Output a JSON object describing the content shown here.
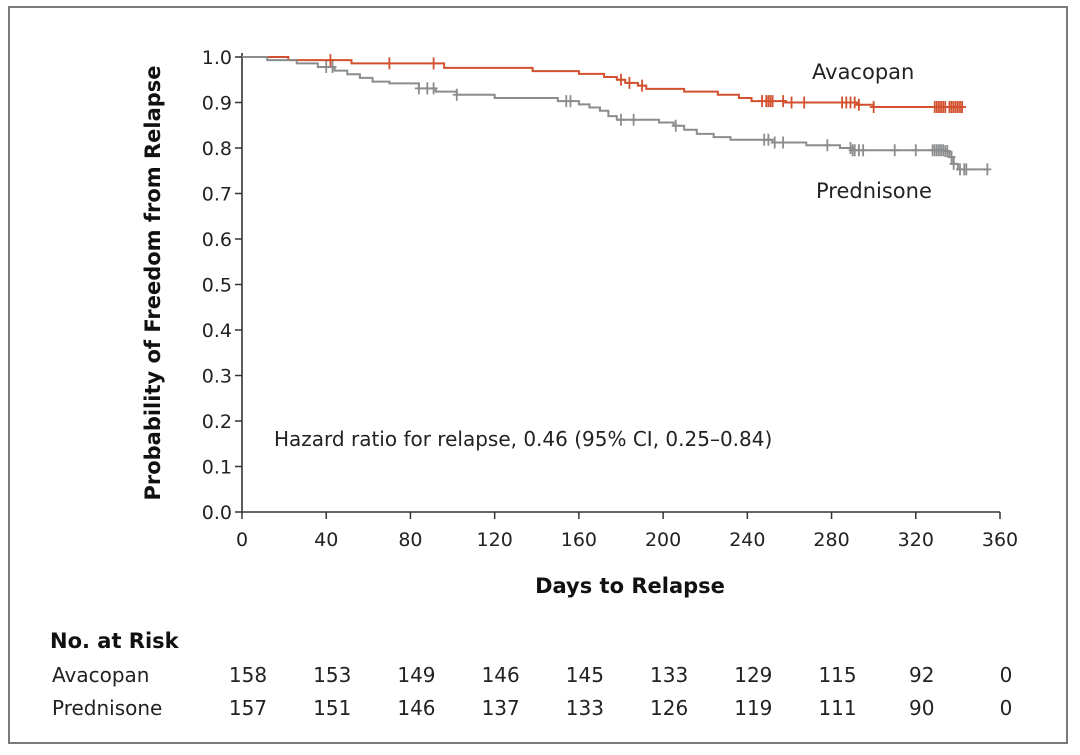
{
  "chart_data": {
    "type": "line",
    "title": "",
    "xlabel": "Days to Relapse",
    "ylabel": "Probability of Freedom from Relapse",
    "xlim": [
      0,
      360
    ],
    "ylim": [
      0,
      1
    ],
    "x_ticks": [
      0,
      40,
      80,
      120,
      160,
      200,
      240,
      280,
      320,
      360
    ],
    "y_ticks": [
      "0.0",
      "0.1",
      "0.2",
      "0.3",
      "0.4",
      "0.5",
      "0.6",
      "0.7",
      "0.8",
      "0.9",
      "1.0"
    ],
    "grid": false,
    "annotation": "Hazard ratio for relapse, 0.46 (95% CI, 0.25–0.84)",
    "series": [
      {
        "name": "Avacopan",
        "color": "#d2502e",
        "steps": [
          [
            0,
            1.0
          ],
          [
            22,
            0.993
          ],
          [
            52,
            0.986
          ],
          [
            96,
            0.976
          ],
          [
            138,
            0.969
          ],
          [
            160,
            0.963
          ],
          [
            172,
            0.956
          ],
          [
            178,
            0.95
          ],
          [
            182,
            0.943
          ],
          [
            188,
            0.937
          ],
          [
            192,
            0.93
          ],
          [
            210,
            0.924
          ],
          [
            226,
            0.917
          ],
          [
            236,
            0.91
          ],
          [
            242,
            0.903
          ],
          [
            258,
            0.9
          ],
          [
            292,
            0.895
          ],
          [
            300,
            0.89
          ],
          [
            342,
            0.89
          ]
        ],
        "censored": [
          42,
          70,
          91,
          180,
          184,
          190,
          247,
          249,
          250,
          251,
          252,
          257,
          261,
          267,
          285,
          287,
          289,
          291,
          293,
          300,
          329,
          330,
          331,
          332,
          333,
          334,
          336,
          337,
          338,
          339,
          340,
          341,
          342
        ]
      },
      {
        "name": "Prednisone",
        "color": "#8a8c8e",
        "steps": [
          [
            0,
            1.0
          ],
          [
            12,
            0.993
          ],
          [
            26,
            0.986
          ],
          [
            36,
            0.978
          ],
          [
            44,
            0.97
          ],
          [
            50,
            0.962
          ],
          [
            56,
            0.954
          ],
          [
            62,
            0.946
          ],
          [
            70,
            0.942
          ],
          [
            84,
            0.931
          ],
          [
            92,
            0.924
          ],
          [
            102,
            0.917
          ],
          [
            120,
            0.91
          ],
          [
            150,
            0.903
          ],
          [
            160,
            0.896
          ],
          [
            165,
            0.889
          ],
          [
            170,
            0.882
          ],
          [
            174,
            0.87
          ],
          [
            178,
            0.862
          ],
          [
            198,
            0.856
          ],
          [
            205,
            0.849
          ],
          [
            210,
            0.84
          ],
          [
            216,
            0.831
          ],
          [
            224,
            0.824
          ],
          [
            232,
            0.818
          ],
          [
            252,
            0.812
          ],
          [
            268,
            0.806
          ],
          [
            284,
            0.8
          ],
          [
            290,
            0.795
          ],
          [
            334,
            0.793
          ],
          [
            336,
            0.78
          ],
          [
            338,
            0.765
          ],
          [
            340,
            0.753
          ],
          [
            354,
            0.753
          ]
        ],
        "censored": [
          40,
          43,
          84,
          88,
          91,
          102,
          154,
          156,
          180,
          186,
          206,
          248,
          250,
          253,
          257,
          278,
          289,
          290,
          291,
          293,
          295,
          310,
          320,
          328,
          329,
          330,
          331,
          332,
          333,
          334,
          335,
          337,
          338,
          341,
          343,
          344,
          354
        ]
      }
    ],
    "risk_table": {
      "heading": "No. at Risk",
      "rows": [
        {
          "label": "Avacopan",
          "values": [
            "158",
            "153",
            "149",
            "146",
            "145",
            "133",
            "129",
            "115",
            "92",
            "0"
          ]
        },
        {
          "label": "Prednisone",
          "values": [
            "157",
            "151",
            "146",
            "137",
            "133",
            "126",
            "119",
            "111",
            "90",
            "0"
          ]
        }
      ]
    }
  }
}
